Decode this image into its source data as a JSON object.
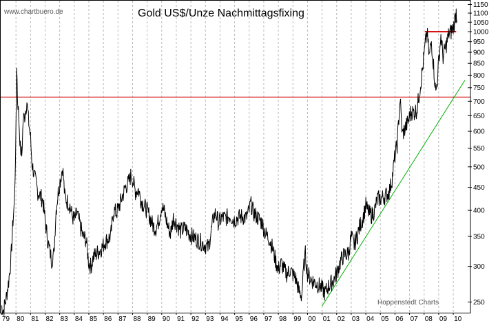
{
  "chart_data": {
    "type": "line",
    "title": "Gold US$/Unze Nachmittagsfixing",
    "watermark": "www.chartbuero.de",
    "credit": "Hoppenstedt Charts",
    "y_scale": "log",
    "ylim": [
      235,
      1160
    ],
    "y_ticks": [
      250,
      300,
      350,
      400,
      450,
      500,
      550,
      600,
      650,
      700,
      750,
      800,
      850,
      900,
      950,
      1000,
      1050,
      1100,
      1150
    ],
    "xlim": [
      1979.0,
      2010.8
    ],
    "x_ticks": [
      {
        "year": 1979,
        "label": "79"
      },
      {
        "year": 1980,
        "label": "80"
      },
      {
        "year": 1981,
        "label": "81"
      },
      {
        "year": 1982,
        "label": "82"
      },
      {
        "year": 1983,
        "label": "83"
      },
      {
        "year": 1984,
        "label": "84"
      },
      {
        "year": 1985,
        "label": "85"
      },
      {
        "year": 1986,
        "label": "86"
      },
      {
        "year": 1987,
        "label": "87"
      },
      {
        "year": 1988,
        "label": "88"
      },
      {
        "year": 1989,
        "label": "89"
      },
      {
        "year": 1990,
        "label": "90"
      },
      {
        "year": 1991,
        "label": "91"
      },
      {
        "year": 1992,
        "label": "92"
      },
      {
        "year": 1993,
        "label": "93"
      },
      {
        "year": 1994,
        "label": "94"
      },
      {
        "year": 1995,
        "label": "95"
      },
      {
        "year": 1996,
        "label": "96"
      },
      {
        "year": 1997,
        "label": "97"
      },
      {
        "year": 1998,
        "label": "98"
      },
      {
        "year": 1999,
        "label": "99"
      },
      {
        "year": 2000,
        "label": "00"
      },
      {
        "year": 2001,
        "label": "01"
      },
      {
        "year": 2002,
        "label": "02"
      },
      {
        "year": 2003,
        "label": "03"
      },
      {
        "year": 2004,
        "label": "04"
      },
      {
        "year": 2005,
        "label": "05"
      },
      {
        "year": 2006,
        "label": "06"
      },
      {
        "year": 2007,
        "label": "07"
      },
      {
        "year": 2008,
        "label": "08"
      },
      {
        "year": 2009,
        "label": "09"
      },
      {
        "year": 2010,
        "label": "10"
      }
    ],
    "grid": "vertical-dashed",
    "series": [
      {
        "color": "#000000",
        "points": [
          [
            1979.0,
            245
          ],
          [
            1979.15,
            240
          ],
          [
            1979.3,
            252
          ],
          [
            1979.5,
            278
          ],
          [
            1979.65,
            310
          ],
          [
            1979.8,
            380
          ],
          [
            1979.9,
            420
          ],
          [
            1980.0,
            600
          ],
          [
            1980.05,
            850
          ],
          [
            1980.1,
            720
          ],
          [
            1980.2,
            640
          ],
          [
            1980.3,
            550
          ],
          [
            1980.4,
            530
          ],
          [
            1980.5,
            640
          ],
          [
            1980.6,
            650
          ],
          [
            1980.75,
            700
          ],
          [
            1980.85,
            640
          ],
          [
            1981.0,
            580
          ],
          [
            1981.1,
            510
          ],
          [
            1981.25,
            480
          ],
          [
            1981.5,
            440
          ],
          [
            1981.7,
            430
          ],
          [
            1981.85,
            420
          ],
          [
            1982.0,
            380
          ],
          [
            1982.2,
            340
          ],
          [
            1982.45,
            310
          ],
          [
            1982.6,
            320
          ],
          [
            1982.75,
            400
          ],
          [
            1982.9,
            440
          ],
          [
            1983.1,
            480
          ],
          [
            1983.2,
            500
          ],
          [
            1983.35,
            430
          ],
          [
            1983.5,
            420
          ],
          [
            1983.7,
            410
          ],
          [
            1983.85,
            390
          ],
          [
            1984.0,
            380
          ],
          [
            1984.2,
            395
          ],
          [
            1984.4,
            370
          ],
          [
            1984.6,
            350
          ],
          [
            1984.8,
            345
          ],
          [
            1985.0,
            305
          ],
          [
            1985.15,
            300
          ],
          [
            1985.3,
            315
          ],
          [
            1985.5,
            320
          ],
          [
            1985.7,
            325
          ],
          [
            1985.9,
            330
          ],
          [
            1986.1,
            340
          ],
          [
            1986.3,
            345
          ],
          [
            1986.5,
            350
          ],
          [
            1986.7,
            400
          ],
          [
            1986.9,
            395
          ],
          [
            1987.1,
            410
          ],
          [
            1987.3,
            430
          ],
          [
            1987.5,
            450
          ],
          [
            1987.7,
            460
          ],
          [
            1987.9,
            480
          ],
          [
            1988.0,
            470
          ],
          [
            1988.2,
            440
          ],
          [
            1988.4,
            445
          ],
          [
            1988.6,
            420
          ],
          [
            1988.8,
            410
          ],
          [
            1989.0,
            400
          ],
          [
            1989.2,
            385
          ],
          [
            1989.4,
            370
          ],
          [
            1989.6,
            365
          ],
          [
            1989.8,
            380
          ],
          [
            1990.0,
            410
          ],
          [
            1990.2,
            395
          ],
          [
            1990.4,
            370
          ],
          [
            1990.6,
            355
          ],
          [
            1990.8,
            385
          ],
          [
            1991.0,
            375
          ],
          [
            1991.3,
            360
          ],
          [
            1991.6,
            365
          ],
          [
            1991.9,
            355
          ],
          [
            1992.1,
            350
          ],
          [
            1992.4,
            345
          ],
          [
            1992.7,
            340
          ],
          [
            1992.95,
            335
          ],
          [
            1993.2,
            330
          ],
          [
            1993.4,
            360
          ],
          [
            1993.55,
            385
          ],
          [
            1993.7,
            395
          ],
          [
            1993.9,
            375
          ],
          [
            1994.1,
            385
          ],
          [
            1994.4,
            385
          ],
          [
            1994.7,
            390
          ],
          [
            1994.95,
            380
          ],
          [
            1995.2,
            385
          ],
          [
            1995.5,
            388
          ],
          [
            1995.8,
            385
          ],
          [
            1996.0,
            400
          ],
          [
            1996.1,
            415
          ],
          [
            1996.3,
            395
          ],
          [
            1996.6,
            385
          ],
          [
            1996.9,
            375
          ],
          [
            1997.1,
            355
          ],
          [
            1997.4,
            345
          ],
          [
            1997.6,
            330
          ],
          [
            1997.8,
            310
          ],
          [
            1998.0,
            295
          ],
          [
            1998.2,
            305
          ],
          [
            1998.4,
            295
          ],
          [
            1998.6,
            288
          ],
          [
            1998.8,
            295
          ],
          [
            1999.0,
            288
          ],
          [
            1999.2,
            282
          ],
          [
            1999.4,
            265
          ],
          [
            1999.6,
            258
          ],
          [
            1999.75,
            300
          ],
          [
            1999.85,
            320
          ],
          [
            2000.0,
            290
          ],
          [
            2000.2,
            282
          ],
          [
            2000.4,
            278
          ],
          [
            2000.6,
            275
          ],
          [
            2000.8,
            272
          ],
          [
            2001.0,
            268
          ],
          [
            2001.2,
            262
          ],
          [
            2001.4,
            270
          ],
          [
            2001.6,
            275
          ],
          [
            2001.8,
            280
          ],
          [
            2002.0,
            290
          ],
          [
            2002.3,
            310
          ],
          [
            2002.5,
            318
          ],
          [
            2002.8,
            320
          ],
          [
            2003.0,
            350
          ],
          [
            2003.2,
            335
          ],
          [
            2003.4,
            350
          ],
          [
            2003.6,
            370
          ],
          [
            2003.8,
            385
          ],
          [
            2004.0,
            410
          ],
          [
            2004.2,
            395
          ],
          [
            2004.4,
            390
          ],
          [
            2004.6,
            400
          ],
          [
            2004.8,
            425
          ],
          [
            2005.0,
            425
          ],
          [
            2005.3,
            430
          ],
          [
            2005.6,
            440
          ],
          [
            2005.8,
            470
          ],
          [
            2006.0,
            530
          ],
          [
            2006.15,
            560
          ],
          [
            2006.35,
            710
          ],
          [
            2006.5,
            590
          ],
          [
            2006.7,
            610
          ],
          [
            2006.9,
            630
          ],
          [
            2007.1,
            665
          ],
          [
            2007.3,
            660
          ],
          [
            2007.5,
            670
          ],
          [
            2007.7,
            740
          ],
          [
            2007.9,
            830
          ],
          [
            2008.05,
            920
          ],
          [
            2008.2,
            1000
          ],
          [
            2008.35,
            880
          ],
          [
            2008.5,
            950
          ],
          [
            2008.65,
            840
          ],
          [
            2008.8,
            730
          ],
          [
            2008.9,
            780
          ],
          [
            2009.05,
            900
          ],
          [
            2009.15,
            980
          ],
          [
            2009.3,
            880
          ],
          [
            2009.5,
            930
          ],
          [
            2009.7,
            990
          ],
          [
            2009.85,
            1000
          ],
          [
            2010.0,
            1020
          ],
          [
            2010.1,
            1060
          ],
          [
            2010.2,
            1110
          ],
          [
            2010.25,
            1060
          ]
        ]
      }
    ],
    "lines": [
      {
        "kind": "horizontal",
        "value": 715,
        "color": "#d00000"
      },
      {
        "kind": "segment",
        "points": [
          [
            2008.05,
            1000
          ],
          [
            2010.2,
            1000
          ]
        ],
        "color": "#d00000"
      },
      {
        "kind": "segment",
        "points": [
          [
            2001.0,
            245
          ],
          [
            2010.8,
            780
          ]
        ],
        "color": "#00b000"
      }
    ]
  }
}
